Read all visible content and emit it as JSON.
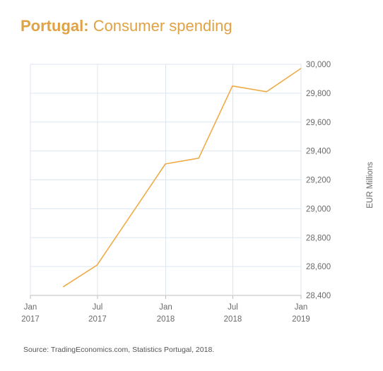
{
  "title": {
    "country": "Portugal:",
    "subject": "Consumer spending"
  },
  "source": "Source: TradingEconomics.com, Statistics Portugal, 2018.",
  "colors": {
    "line": "#f0ab47",
    "title": "#e0a243",
    "grid": "#dce6f0",
    "axis": "#bdbdbd"
  },
  "chart_data": {
    "type": "line",
    "title": "Portugal: Consumer spending",
    "xlabel": "",
    "ylabel": "EUR Millions",
    "ylim": [
      28400,
      30000
    ],
    "xlim": [
      "2017-01-01",
      "2019-01-01"
    ],
    "grid": true,
    "legend": "none",
    "y_ticks": [
      28400,
      28600,
      28800,
      29000,
      29200,
      29400,
      29600,
      29800,
      30000
    ],
    "y_tick_labels": [
      "28,400",
      "28,600",
      "28,800",
      "29,000",
      "29,200",
      "29,400",
      "29,600",
      "29,800",
      "30,000"
    ],
    "x_ticks": [
      {
        "date": "2017-01-01",
        "label1": "Jan",
        "label2": "2017"
      },
      {
        "date": "2017-07-01",
        "label1": "Jul",
        "label2": "2017"
      },
      {
        "date": "2018-01-01",
        "label1": "Jan",
        "label2": "2018"
      },
      {
        "date": "2018-07-01",
        "label1": "Jul",
        "label2": "2018"
      },
      {
        "date": "2019-01-01",
        "label1": "Jan",
        "label2": "2019"
      }
    ],
    "series": [
      {
        "points": [
          {
            "x": "2017-03-31",
            "y": 28460
          },
          {
            "x": "2017-06-30",
            "y": 28610
          },
          {
            "x": "2017-09-30",
            "y": 28960
          },
          {
            "x": "2017-12-31",
            "y": 29310
          },
          {
            "x": "2018-03-31",
            "y": 29350
          },
          {
            "x": "2018-06-30",
            "y": 29850
          },
          {
            "x": "2018-09-30",
            "y": 29810
          },
          {
            "x": "2018-12-31",
            "y": 29970
          }
        ]
      }
    ]
  }
}
